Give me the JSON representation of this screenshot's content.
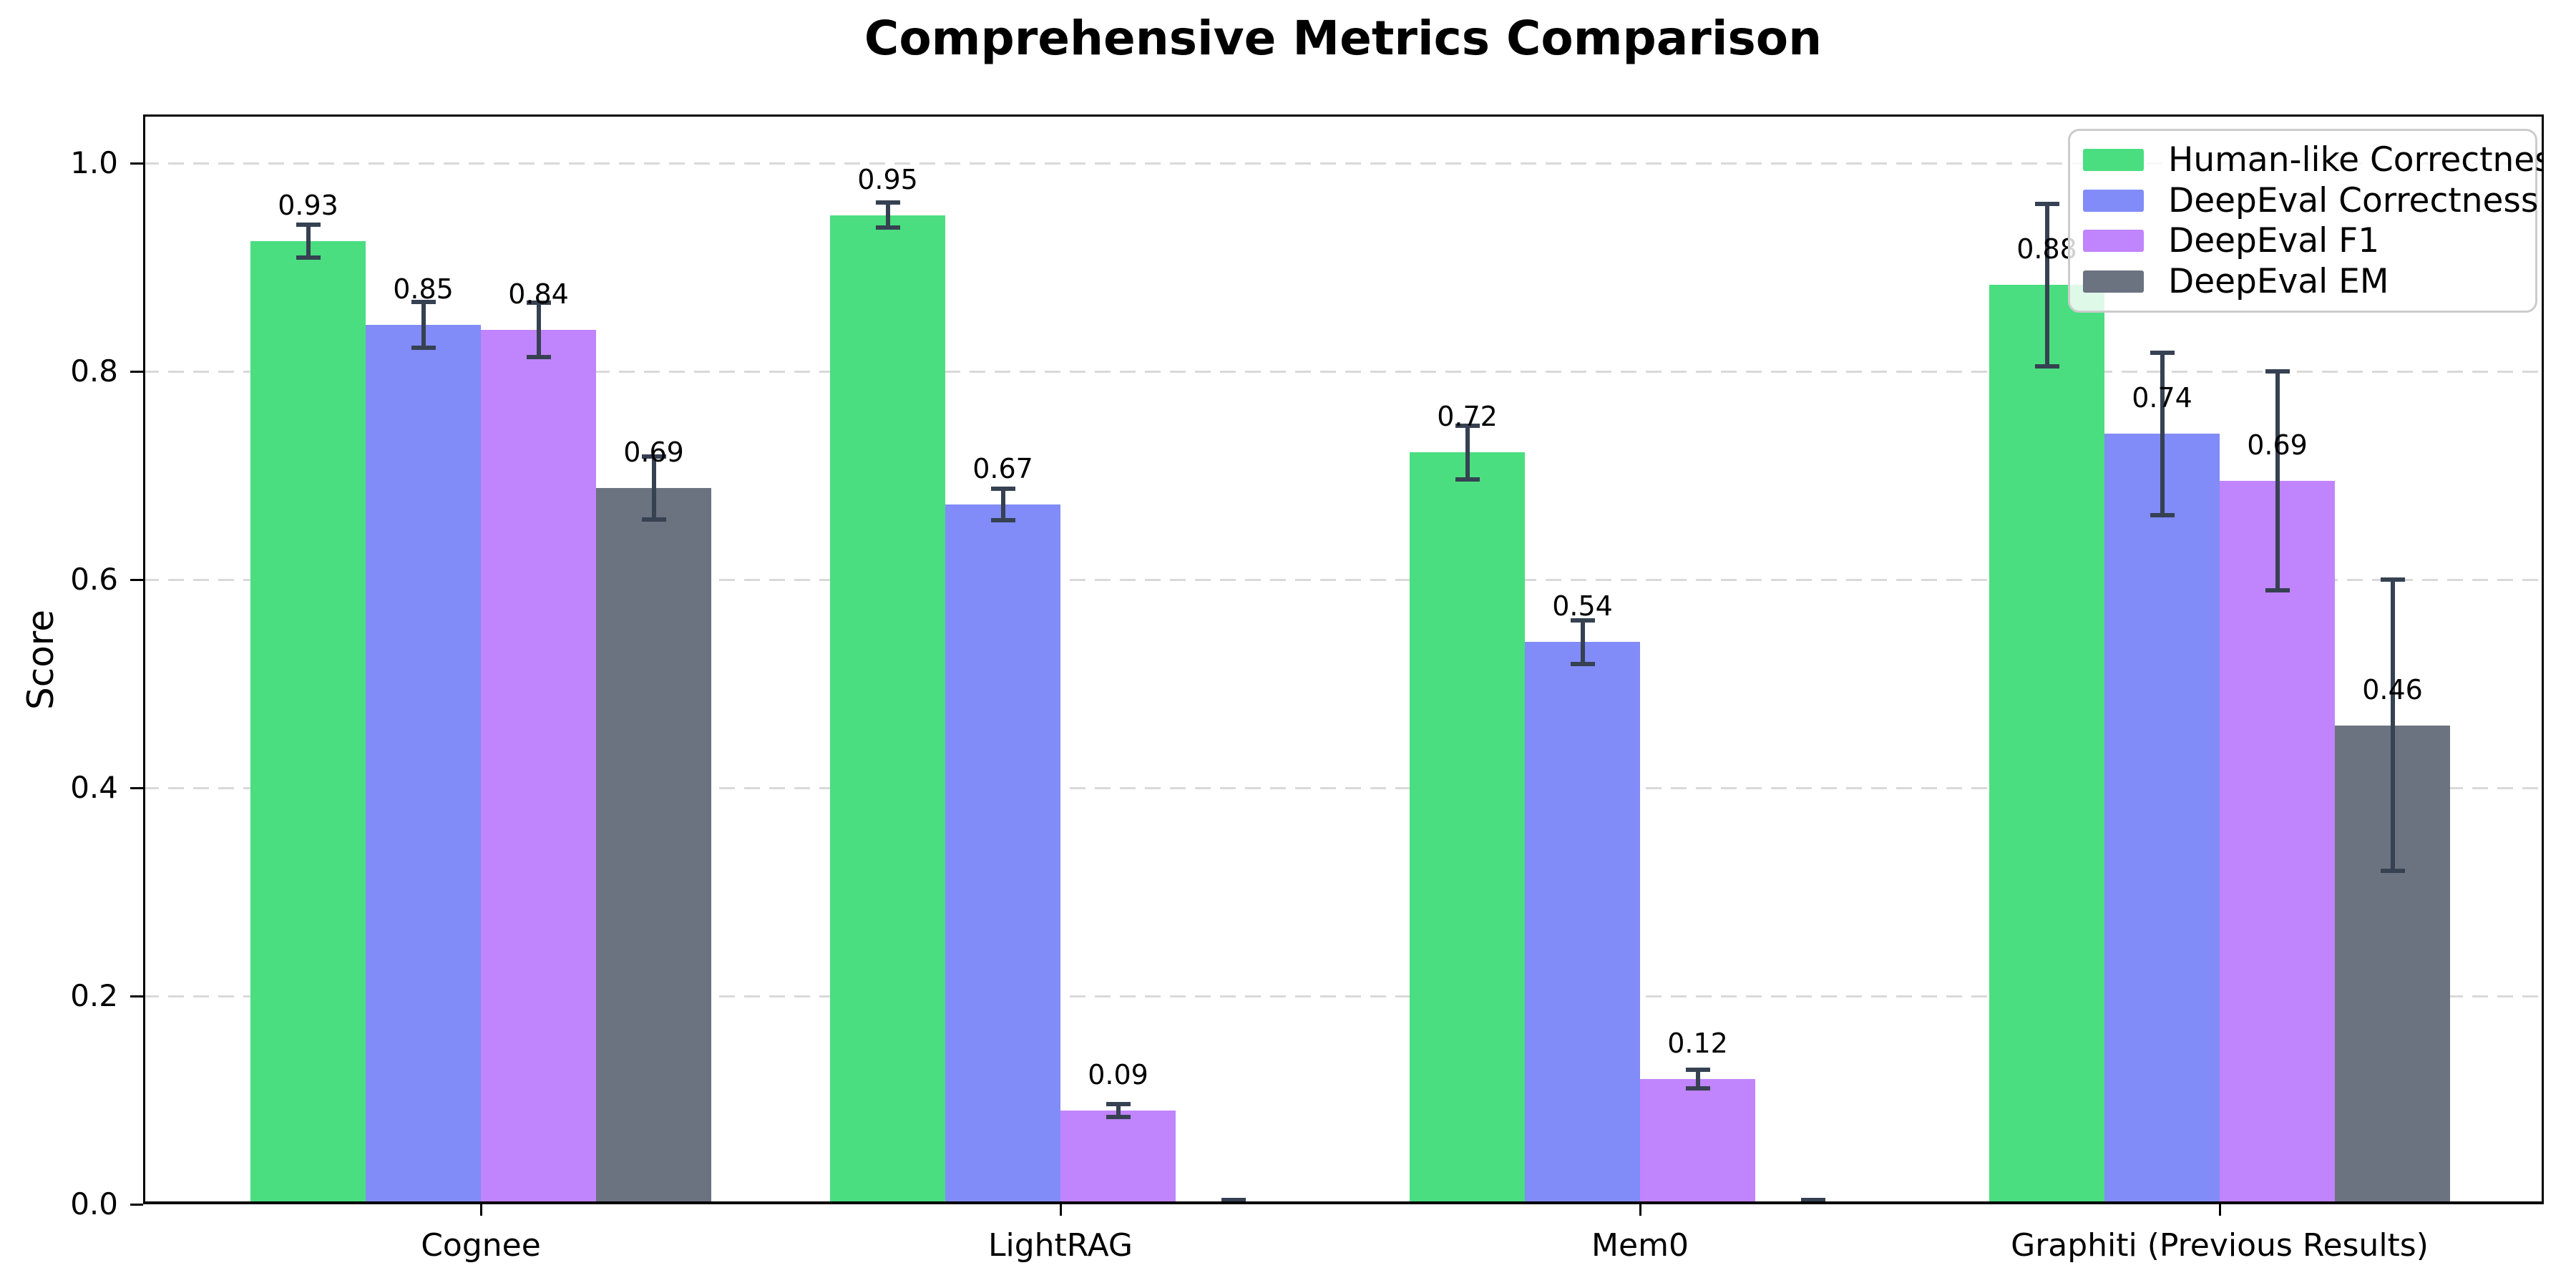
{
  "figure": {
    "background": "#ffffff",
    "spine_color": "#000000"
  },
  "chart_data": {
    "type": "bar",
    "title": "Comprehensive Metrics Comparison",
    "xlabel": "",
    "ylabel": "Score",
    "categories": [
      "Cognee",
      "LightRAG",
      "Mem0",
      "Graphiti (Previous Results)"
    ],
    "series": [
      {
        "name": "Human-like Correctness",
        "color": "#4ade80",
        "values": [
          0.925,
          0.95,
          0.722,
          0.883
        ],
        "errors": [
          0.016,
          0.012,
          0.026,
          0.078
        ],
        "labels": [
          "0.93",
          "0.95",
          "0.72",
          "0.88"
        ]
      },
      {
        "name": "DeepEval Correctness",
        "color": "#818cf8",
        "values": [
          0.845,
          0.672,
          0.54,
          0.74
        ],
        "errors": [
          0.022,
          0.015,
          0.021,
          0.078
        ],
        "labels": [
          "0.85",
          "0.67",
          "0.54",
          "0.74"
        ]
      },
      {
        "name": "DeepEval F1",
        "color": "#c084fc",
        "values": [
          0.84,
          0.09,
          0.12,
          0.695
        ],
        "errors": [
          0.026,
          0.006,
          0.009,
          0.105
        ],
        "labels": [
          "0.84",
          "0.09",
          "0.12",
          "0.69"
        ]
      },
      {
        "name": "DeepEval EM",
        "color": "#6b7280",
        "values": [
          0.688,
          0.0,
          0.0,
          0.46
        ],
        "errors": [
          0.03,
          0.004,
          0.004,
          0.14
        ],
        "labels": [
          "0.69",
          null,
          null,
          "0.46"
        ]
      }
    ],
    "ylim": [
      0,
      1.047
    ],
    "yticks": [
      {
        "value": 0.0,
        "label": "0.0"
      },
      {
        "value": 0.2,
        "label": "0.2"
      },
      {
        "value": 0.4,
        "label": "0.4"
      },
      {
        "value": 0.6,
        "label": "0.6"
      },
      {
        "value": 0.8,
        "label": "0.8"
      },
      {
        "value": 1.0,
        "label": "1.0"
      }
    ],
    "grid": {
      "axis": "y",
      "style": "dashed",
      "color": "#d9d9d9"
    },
    "legend": {
      "position": "upper right"
    },
    "error_bar_color": "#364152"
  }
}
